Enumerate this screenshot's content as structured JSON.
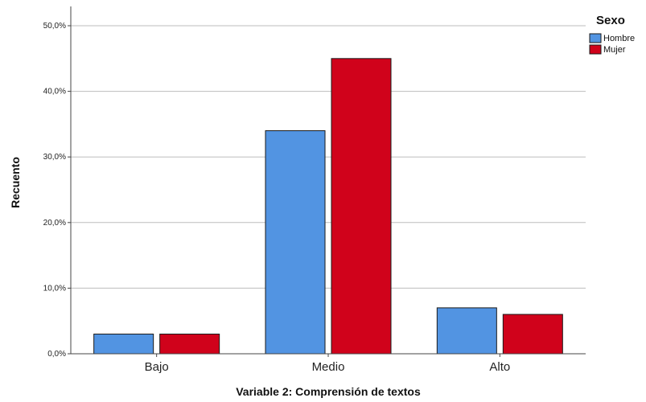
{
  "chart_data": {
    "type": "bar",
    "categories": [
      "Bajo",
      "Medio",
      "Alto"
    ],
    "series": [
      {
        "name": "Hombre",
        "values": [
          3.0,
          34.0,
          7.0
        ],
        "color": "#5294e2"
      },
      {
        "name": "Mujer",
        "values": [
          3.0,
          45.0,
          6.0
        ],
        "color": "#d0021b"
      }
    ],
    "xlabel": "Variable 2: Comprensión de textos",
    "ylabel": "Recuento",
    "ylim": [
      0,
      50
    ],
    "yticks": [
      "0,0%",
      "10,0%",
      "20,0%",
      "30,0%",
      "40,0%",
      "50,0%"
    ],
    "legend_title": "Sexo",
    "legend_position": "top-right",
    "grid": true
  }
}
